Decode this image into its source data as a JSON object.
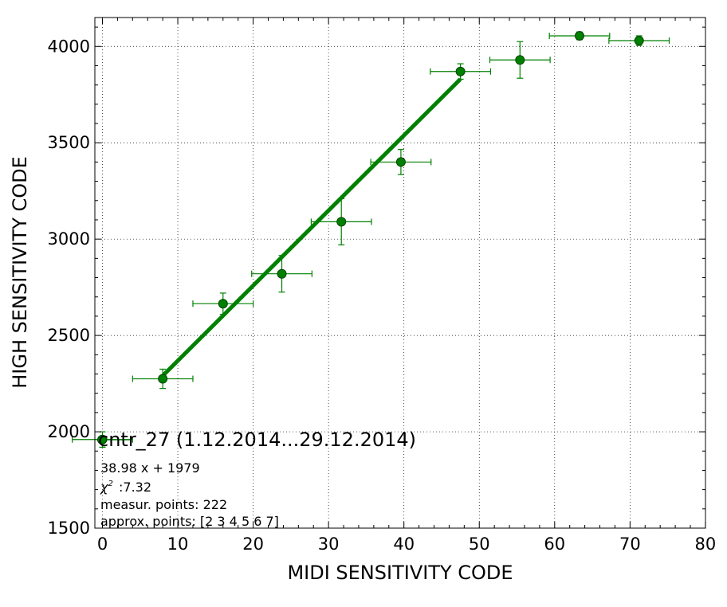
{
  "chart_data": {
    "type": "scatter",
    "xlabel": "MIDI SENSITIVITY CODE",
    "ylabel": "HIGH SENSITIVITY CODE",
    "xlim": [
      -1,
      80
    ],
    "ylim": [
      1500,
      4150
    ],
    "x_ticks": [
      0,
      10,
      20,
      30,
      40,
      50,
      60,
      70,
      80
    ],
    "y_ticks": [
      1500,
      2000,
      2500,
      3000,
      3500,
      4000
    ],
    "grid": true,
    "colors": {
      "series": "#008000",
      "marker_edge": "#004400",
      "fit": "#008000"
    },
    "series": [
      {
        "name": "cntr_27 (1.12.2014...29.12.2014)",
        "points": [
          {
            "x": 0,
            "y": 1960,
            "xerr": 4,
            "yerr": 40
          },
          {
            "x": 8,
            "y": 2275,
            "xerr": 4,
            "yerr": 50
          },
          {
            "x": 16,
            "y": 2665,
            "xerr": 4,
            "yerr": 55
          },
          {
            "x": 23.8,
            "y": 2820,
            "xerr": 4,
            "yerr": 95
          },
          {
            "x": 31.7,
            "y": 3090,
            "xerr": 4,
            "yerr": 120
          },
          {
            "x": 39.6,
            "y": 3400,
            "xerr": 4,
            "yerr": 65
          },
          {
            "x": 47.5,
            "y": 3870,
            "xerr": 4,
            "yerr": 40
          },
          {
            "x": 55.4,
            "y": 3930,
            "xerr": 4,
            "yerr": 95
          },
          {
            "x": 63.3,
            "y": 4055,
            "xerr": 4,
            "yerr": 20
          },
          {
            "x": 71.2,
            "y": 4030,
            "xerr": 4,
            "yerr": 25
          }
        ]
      }
    ],
    "fit": {
      "slope": 38.98,
      "intercept": 1979,
      "x_range": [
        8,
        47.5
      ]
    },
    "annotations": {
      "legend_label": "cntr_27 (1.12.2014...29.12.2014)",
      "equation": "38.98 x + 1979",
      "chi2_value": ":7.32",
      "measur_points": "measur. points: 222",
      "approx_points": "approx. points: [2 3 4 5 6 7]"
    }
  }
}
